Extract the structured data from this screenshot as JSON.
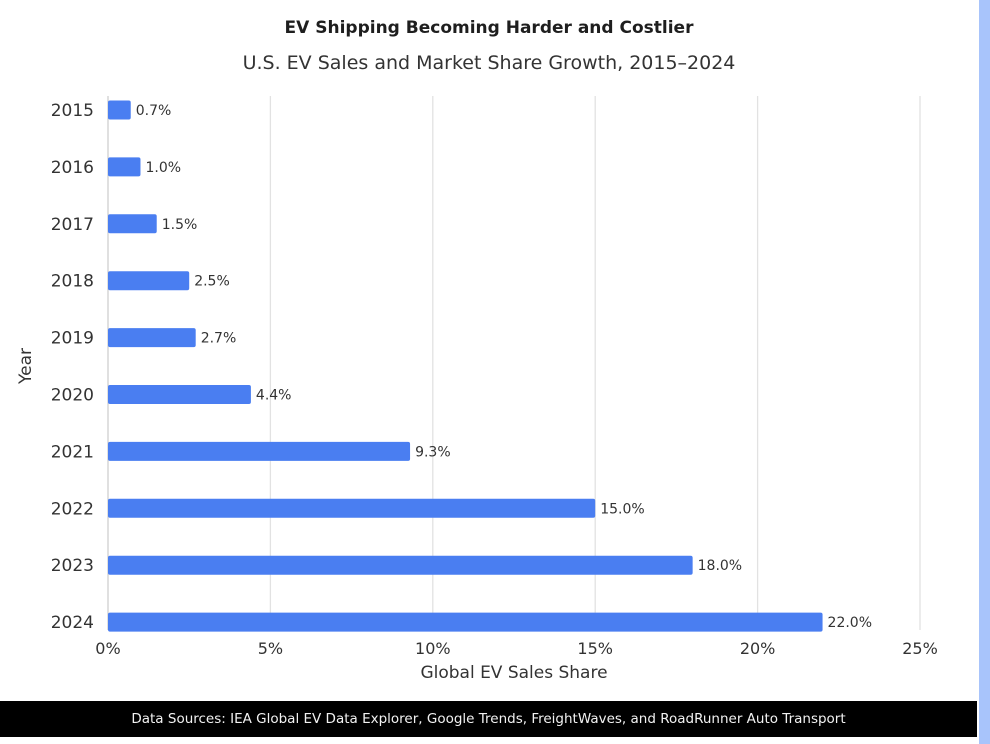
{
  "header": {
    "title": "EV Shipping Becoming Harder and Costlier",
    "subtitle": "U.S. EV Sales and Market Share Growth, 2015–2024"
  },
  "footer": {
    "sources": "Data Sources: IEA Global EV Data Explorer, Google Trends, FreightWaves, and RoadRunner Auto Transport"
  },
  "colors": {
    "bar": "#4a7ef1",
    "grid": "#e2e2e2",
    "footer_bg": "#000000",
    "scrollbar": "#a8c4fb"
  },
  "chart_data": {
    "type": "bar",
    "orientation": "horizontal",
    "title": "EV Shipping Becoming Harder and Costlier",
    "subtitle": "U.S. EV Sales and Market Share Growth, 2015–2024",
    "xlabel": "Global EV Sales Share",
    "ylabel": "Year",
    "categories": [
      "2015",
      "2016",
      "2017",
      "2018",
      "2019",
      "2020",
      "2021",
      "2022",
      "2023",
      "2024"
    ],
    "values": [
      0.7,
      1.0,
      1.5,
      2.5,
      2.7,
      4.4,
      9.3,
      15.0,
      18.0,
      22.0
    ],
    "data_labels": [
      "0.7%",
      "1.0%",
      "1.5%",
      "2.5%",
      "2.7%",
      "4.4%",
      "9.3%",
      "15.0%",
      "18.0%",
      "22.0%"
    ],
    "xlim": [
      0,
      25
    ],
    "x_ticks": [
      0,
      5,
      10,
      15,
      20,
      25
    ],
    "x_tick_labels": [
      "0%",
      "5%",
      "10%",
      "15%",
      "20%",
      "25%"
    ],
    "grid": true,
    "legend": "none"
  }
}
